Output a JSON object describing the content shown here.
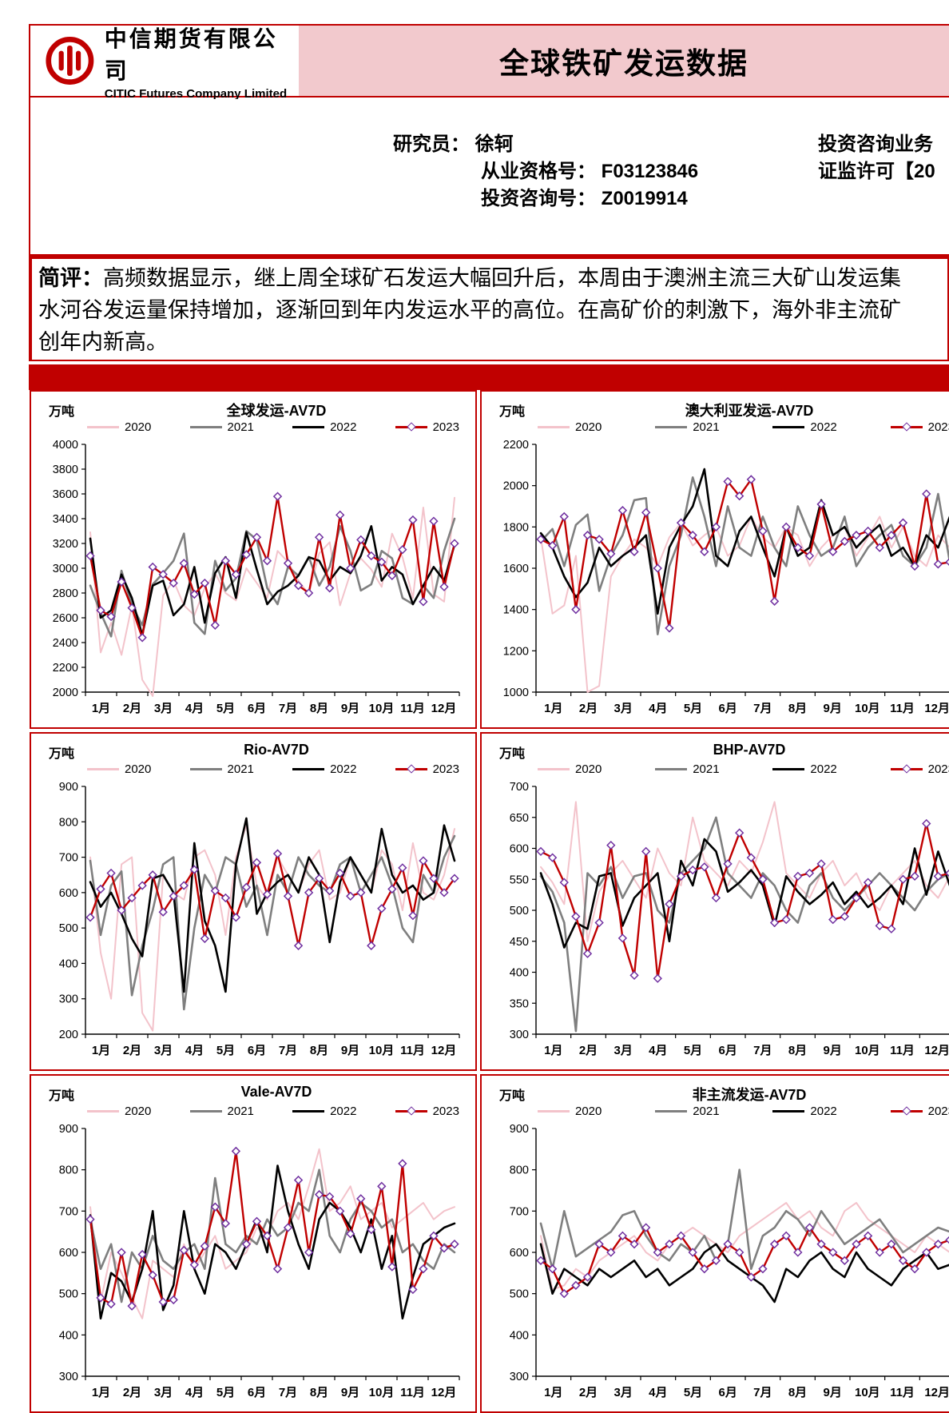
{
  "header": {
    "company_cn": "中信期货有限公司",
    "company_en": "CITIC Futures Company Limited",
    "report_title": "全球铁矿发运数据"
  },
  "analyst": {
    "researcher_line": "研究员： 徐轲",
    "qualification_line": "从业资格号： F03123846",
    "advisory_line": "投资咨询号： Z0019914",
    "right_line1": "投资咨询业务",
    "right_line2": "证监许可【20"
  },
  "comment": {
    "label": "简评：",
    "line1": "高频数据显示，继上周全球矿石发运大幅回升后，本周由于澳洲主流三大矿山发运集",
    "line2": "水河谷发运量保持增加，逐渐回到年内发运水平的高位。在高矿价的刺激下，海外非主流矿",
    "line3": "创年内新高。"
  },
  "palette": {
    "accent": "#c00000",
    "header_pink": "#f2c9cd",
    "marker_stroke": "#7030a0",
    "marker_fill": "#ffffff"
  },
  "months": [
    "1月",
    "2月",
    "3月",
    "4月",
    "5月",
    "6月",
    "7月",
    "8月",
    "9月",
    "10月",
    "11月",
    "12月"
  ],
  "series_meta": [
    {
      "name": "2020",
      "color": "#f3c3cb",
      "width": 2.0,
      "marker": false
    },
    {
      "name": "2021",
      "color": "#7f7f7f",
      "width": 2.6,
      "marker": false
    },
    {
      "name": "2022",
      "color": "#000000",
      "width": 2.6,
      "marker": false
    },
    {
      "name": "2023",
      "color": "#c00000",
      "width": 2.4,
      "marker": true
    }
  ],
  "chart_data": [
    {
      "type": "line",
      "title": "全球发运-AV7D",
      "unit": "万吨",
      "ymin": 2000,
      "ymax": 4000,
      "ystep": 200,
      "grid": false,
      "legend_position": "top",
      "values": {
        "2020": [
          3290,
          2320,
          2560,
          2300,
          2700,
          2100,
          1960,
          2780,
          2900,
          2700,
          2620,
          2840,
          2960,
          2800,
          2740,
          3000,
          2880,
          2760,
          3140,
          3050,
          2900,
          2790,
          3120,
          3210,
          2700,
          2960,
          3080,
          2990,
          2850,
          3280,
          3090,
          2760,
          3490,
          2790,
          2730,
          3570
        ],
        "2021": [
          2860,
          2640,
          2450,
          2980,
          2700,
          2540,
          2870,
          2960,
          3060,
          3280,
          2560,
          2470,
          3060,
          2820,
          2920,
          3300,
          3230,
          2840,
          2710,
          3010,
          2940,
          3090,
          2860,
          3010,
          3340,
          3140,
          2820,
          2870,
          3140,
          3080,
          2760,
          2710,
          2860,
          2760,
          3140,
          3400
        ],
        "2022": [
          3240,
          2600,
          2660,
          2950,
          2760,
          2460,
          2860,
          2900,
          2620,
          2710,
          3010,
          2560,
          2960,
          3090,
          2760,
          3290,
          2990,
          2710,
          2810,
          2860,
          2940,
          3090,
          3060,
          2900,
          3010,
          2960,
          3100,
          3340,
          2900,
          3010,
          2950,
          2710,
          2860,
          3010,
          2900,
          3190
        ],
        "2023": [
          3100,
          2660,
          2610,
          2890,
          2680,
          2440,
          3010,
          2950,
          2880,
          3040,
          2790,
          2880,
          2540,
          3060,
          2950,
          3110,
          3250,
          3060,
          3580,
          3040,
          2860,
          2800,
          3250,
          2840,
          3430,
          3000,
          3230,
          3100,
          3050,
          2940,
          3150,
          3390,
          2730,
          3380,
          2850,
          3200
        ]
      }
    },
    {
      "type": "line",
      "title": "澳大利亚发运-AV7D",
      "unit": "万吨",
      "ymin": 1000,
      "ymax": 2200,
      "ystep": 200,
      "grid": false,
      "legend_position": "top",
      "values": {
        "2020": [
          1750,
          1380,
          1420,
          1660,
          1000,
          1030,
          1560,
          1660,
          1740,
          1700,
          1610,
          1750,
          1820,
          1710,
          1760,
          1800,
          1660,
          1710,
          1850,
          1750,
          1700,
          1800,
          1760,
          1610,
          1700,
          1760,
          1800,
          1660,
          1750,
          1850,
          1700,
          1800,
          1660,
          1610,
          1760,
          1700
        ],
        "2021": [
          1730,
          1790,
          1610,
          1810,
          1860,
          1490,
          1660,
          1760,
          1930,
          1940,
          1280,
          1610,
          1760,
          2040,
          1850,
          1610,
          1900,
          1700,
          1660,
          1850,
          1700,
          1610,
          1900,
          1760,
          1660,
          1700,
          1850,
          1610,
          1700,
          1760,
          1810,
          1660,
          1610,
          1700,
          1960,
          1630
        ],
        "2022": [
          1770,
          1700,
          1560,
          1460,
          1530,
          1700,
          1610,
          1660,
          1700,
          1760,
          1380,
          1700,
          1810,
          1900,
          2080,
          1660,
          1610,
          1780,
          1850,
          1700,
          1560,
          1800,
          1660,
          1700,
          1930,
          1760,
          1800,
          1700,
          1760,
          1810,
          1660,
          1700,
          1610,
          1760,
          1700,
          1850
        ],
        "2023": [
          1740,
          1710,
          1850,
          1400,
          1760,
          1740,
          1670,
          1880,
          1680,
          1870,
          1600,
          1310,
          1820,
          1760,
          1680,
          1800,
          2020,
          1950,
          2030,
          1780,
          1440,
          1800,
          1700,
          1660,
          1910,
          1680,
          1730,
          1760,
          1780,
          1700,
          1760,
          1820,
          1610,
          1960,
          1620,
          1630
        ]
      }
    },
    {
      "type": "line",
      "title": "Rio-AV7D",
      "unit": "万吨",
      "ymin": 200,
      "ymax": 900,
      "ystep": 100,
      "grid": false,
      "legend_position": "top",
      "values": {
        "2020": [
          700,
          430,
          300,
          680,
          700,
          260,
          210,
          650,
          600,
          580,
          700,
          720,
          650,
          480,
          700,
          790,
          620,
          580,
          700,
          650,
          600,
          680,
          720,
          580,
          600,
          700,
          650,
          600,
          720,
          680,
          550,
          740,
          600,
          580,
          650,
          780
        ],
        "2021": [
          690,
          480,
          620,
          660,
          310,
          450,
          550,
          680,
          700,
          270,
          500,
          650,
          600,
          700,
          680,
          560,
          620,
          480,
          650,
          600,
          700,
          650,
          620,
          600,
          680,
          700,
          600,
          650,
          700,
          620,
          500,
          460,
          650,
          600,
          700,
          760
        ],
        "2022": [
          630,
          560,
          600,
          540,
          470,
          420,
          640,
          650,
          600,
          320,
          740,
          520,
          450,
          320,
          680,
          810,
          540,
          600,
          630,
          650,
          600,
          700,
          650,
          460,
          630,
          700,
          650,
          600,
          780,
          650,
          600,
          620,
          580,
          600,
          790,
          690
        ],
        "2023": [
          530,
          610,
          655,
          550,
          585,
          620,
          650,
          545,
          590,
          620,
          665,
          470,
          605,
          585,
          530,
          615,
          685,
          595,
          710,
          590,
          450,
          600,
          640,
          605,
          655,
          590,
          600,
          450,
          555,
          610,
          670,
          535,
          690,
          640,
          600,
          640
        ]
      }
    },
    {
      "type": "line",
      "title": "BHP-AV7D",
      "unit": "万吨",
      "ymin": 300,
      "ymax": 700,
      "ystep": 50,
      "grid": false,
      "legend_position": "top",
      "values": {
        "2020": [
          570,
          545,
          510,
          675,
          450,
          530,
          560,
          580,
          550,
          520,
          600,
          560,
          540,
          650,
          580,
          560,
          540,
          580,
          560,
          610,
          675,
          560,
          540,
          520,
          560,
          580,
          540,
          560,
          520,
          500,
          540,
          560,
          580,
          540,
          520,
          555
        ],
        "2021": [
          555,
          530,
          480,
          305,
          560,
          540,
          570,
          520,
          555,
          560,
          500,
          480,
          560,
          580,
          600,
          650,
          560,
          540,
          520,
          560,
          540,
          500,
          480,
          540,
          560,
          520,
          500,
          520,
          540,
          560,
          540,
          520,
          500,
          530,
          550,
          560
        ],
        "2022": [
          560,
          510,
          440,
          480,
          470,
          555,
          560,
          475,
          520,
          540,
          560,
          450,
          580,
          540,
          615,
          595,
          530,
          545,
          565,
          540,
          475,
          555,
          530,
          510,
          525,
          545,
          510,
          530,
          505,
          520,
          540,
          510,
          600,
          525,
          595,
          540
        ],
        "2023": [
          595,
          585,
          545,
          490,
          430,
          480,
          605,
          455,
          395,
          595,
          390,
          510,
          555,
          565,
          570,
          520,
          575,
          625,
          585,
          550,
          480,
          485,
          555,
          560,
          575,
          485,
          490,
          520,
          545,
          475,
          470,
          550,
          555,
          640,
          555,
          560
        ]
      }
    },
    {
      "type": "line",
      "title": "Vale-AV7D",
      "unit": "万吨",
      "ymin": 300,
      "ymax": 900,
      "ystep": 100,
      "grid": false,
      "legend_position": "top",
      "values": {
        "2020": [
          710,
          480,
          600,
          550,
          490,
          440,
          580,
          560,
          540,
          620,
          560,
          600,
          640,
          560,
          580,
          600,
          660,
          640,
          700,
          720,
          680,
          760,
          850,
          700,
          720,
          760,
          680,
          700,
          720,
          660,
          680,
          700,
          720,
          680,
          700,
          710
        ],
        "2021": [
          680,
          560,
          620,
          480,
          600,
          560,
          640,
          580,
          560,
          600,
          620,
          560,
          780,
          620,
          600,
          640,
          620,
          680,
          640,
          660,
          720,
          700,
          800,
          640,
          600,
          680,
          720,
          700,
          660,
          680,
          600,
          620,
          580,
          560,
          620,
          600
        ],
        "2022": [
          690,
          440,
          550,
          530,
          480,
          560,
          700,
          460,
          520,
          700,
          560,
          500,
          620,
          600,
          560,
          620,
          680,
          600,
          810,
          700,
          620,
          560,
          680,
          720,
          700,
          660,
          600,
          680,
          560,
          640,
          440,
          540,
          620,
          640,
          660,
          670
        ],
        "2023": [
          680,
          490,
          475,
          600,
          470,
          595,
          545,
          480,
          485,
          605,
          570,
          615,
          710,
          670,
          845,
          620,
          675,
          640,
          560,
          660,
          775,
          600,
          740,
          735,
          700,
          645,
          730,
          655,
          760,
          565,
          815,
          510,
          560,
          640,
          610,
          620
        ]
      }
    },
    {
      "type": "line",
      "title": "非主流发运-AV7D",
      "unit": "万吨",
      "ymin": 300,
      "ymax": 900,
      "ystep": 100,
      "grid": false,
      "legend_position": "top",
      "values": {
        "2020": [
          640,
          510,
          520,
          560,
          540,
          580,
          600,
          620,
          640,
          600,
          580,
          620,
          640,
          660,
          640,
          620,
          600,
          640,
          660,
          680,
          700,
          720,
          680,
          700,
          660,
          640,
          700,
          720,
          680,
          660,
          640,
          620,
          600,
          640,
          620,
          600
        ],
        "2021": [
          670,
          560,
          700,
          590,
          610,
          630,
          650,
          690,
          700,
          640,
          600,
          580,
          620,
          600,
          640,
          580,
          620,
          800,
          560,
          640,
          660,
          700,
          680,
          640,
          700,
          660,
          620,
          640,
          660,
          680,
          640,
          600,
          620,
          640,
          660,
          650
        ],
        "2022": [
          620,
          500,
          560,
          540,
          520,
          560,
          540,
          560,
          580,
          540,
          560,
          520,
          540,
          560,
          600,
          620,
          580,
          560,
          540,
          520,
          480,
          560,
          540,
          580,
          600,
          560,
          540,
          600,
          560,
          540,
          520,
          560,
          580,
          600,
          560,
          570
        ],
        "2023": [
          580,
          560,
          500,
          520,
          540,
          620,
          600,
          640,
          620,
          660,
          600,
          620,
          640,
          600,
          560,
          580,
          620,
          600,
          540,
          560,
          620,
          640,
          600,
          660,
          620,
          600,
          580,
          620,
          640,
          600,
          620,
          580,
          560,
          600,
          620,
          630
        ]
      }
    }
  ]
}
